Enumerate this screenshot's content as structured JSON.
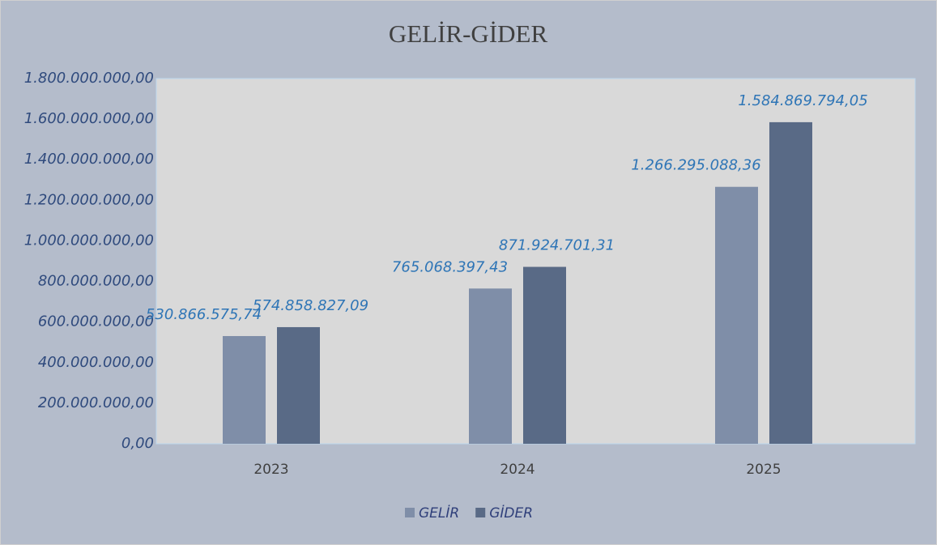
{
  "chart_data": {
    "type": "bar",
    "title": "GELİR-GİDER",
    "categories": [
      "2023",
      "2024",
      "2025"
    ],
    "series": [
      {
        "name": "GELİR",
        "color": "#7f8ea8",
        "values": [
          530866575.74,
          765068397.43,
          1266295088.36
        ],
        "value_labels": [
          "530.866.575,74",
          "765.068.397,43",
          "1.266.295.088,36"
        ]
      },
      {
        "name": "GİDER",
        "color": "#596a86",
        "values": [
          574858827.09,
          871924701.31,
          1584869794.05
        ],
        "value_labels": [
          "574.858.827,09",
          "871.924.701,31",
          "1.584.869.794,05"
        ]
      }
    ],
    "ylim": [
      0,
      1800000000
    ],
    "yticks": [
      {
        "value": 0,
        "label": "0,00"
      },
      {
        "value": 200000000,
        "label": "200.000.000,00"
      },
      {
        "value": 400000000,
        "label": "400.000.000,00"
      },
      {
        "value": 600000000,
        "label": "600.000.000,00"
      },
      {
        "value": 800000000,
        "label": "800.000.000,00"
      },
      {
        "value": 1000000000,
        "label": "1.000.000.000,00"
      },
      {
        "value": 1200000000,
        "label": "1.200.000.000,00"
      },
      {
        "value": 1400000000,
        "label": "1.400.000.000,00"
      },
      {
        "value": 1600000000,
        "label": "1.600.000.000,00"
      },
      {
        "value": 1800000000,
        "label": "1.800.000.000,00"
      }
    ],
    "grid": false,
    "legend": "bottom"
  }
}
